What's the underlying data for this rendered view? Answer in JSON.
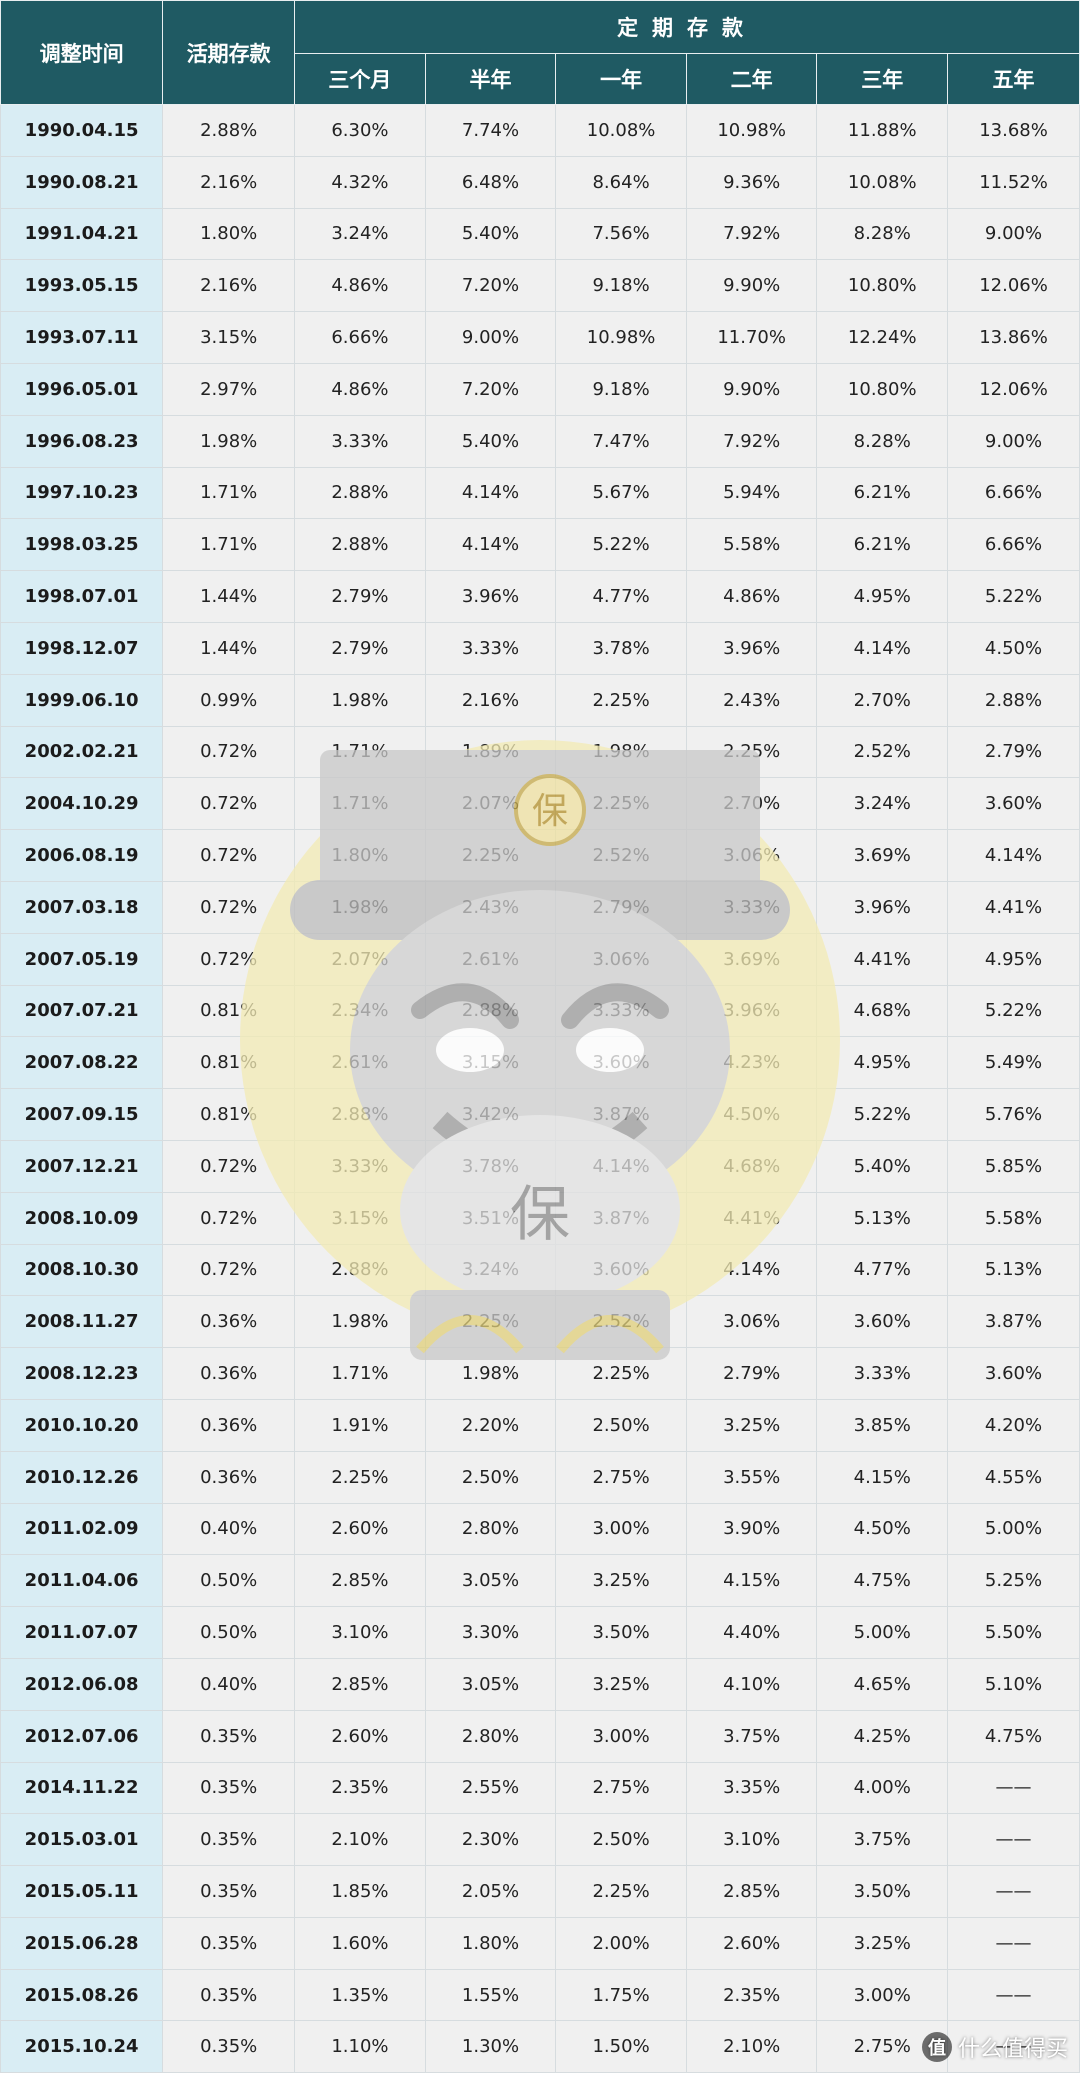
{
  "table": {
    "header": {
      "date_col": "调整时间",
      "demand_col": "活期存款",
      "fixed_group": "定期存款",
      "fixed_cols": [
        "三个月",
        "半年",
        "一年",
        "二年",
        "三年",
        "五年"
      ]
    },
    "rows": [
      [
        "1990.04.15",
        "2.88%",
        "6.30%",
        "7.74%",
        "10.08%",
        "10.98%",
        "11.88%",
        "13.68%"
      ],
      [
        "1990.08.21",
        "2.16%",
        "4.32%",
        "6.48%",
        "8.64%",
        "9.36%",
        "10.08%",
        "11.52%"
      ],
      [
        "1991.04.21",
        "1.80%",
        "3.24%",
        "5.40%",
        "7.56%",
        "7.92%",
        "8.28%",
        "9.00%"
      ],
      [
        "1993.05.15",
        "2.16%",
        "4.86%",
        "7.20%",
        "9.18%",
        "9.90%",
        "10.80%",
        "12.06%"
      ],
      [
        "1993.07.11",
        "3.15%",
        "6.66%",
        "9.00%",
        "10.98%",
        "11.70%",
        "12.24%",
        "13.86%"
      ],
      [
        "1996.05.01",
        "2.97%",
        "4.86%",
        "7.20%",
        "9.18%",
        "9.90%",
        "10.80%",
        "12.06%"
      ],
      [
        "1996.08.23",
        "1.98%",
        "3.33%",
        "5.40%",
        "7.47%",
        "7.92%",
        "8.28%",
        "9.00%"
      ],
      [
        "1997.10.23",
        "1.71%",
        "2.88%",
        "4.14%",
        "5.67%",
        "5.94%",
        "6.21%",
        "6.66%"
      ],
      [
        "1998.03.25",
        "1.71%",
        "2.88%",
        "4.14%",
        "5.22%",
        "5.58%",
        "6.21%",
        "6.66%"
      ],
      [
        "1998.07.01",
        "1.44%",
        "2.79%",
        "3.96%",
        "4.77%",
        "4.86%",
        "4.95%",
        "5.22%"
      ],
      [
        "1998.12.07",
        "1.44%",
        "2.79%",
        "3.33%",
        "3.78%",
        "3.96%",
        "4.14%",
        "4.50%"
      ],
      [
        "1999.06.10",
        "0.99%",
        "1.98%",
        "2.16%",
        "2.25%",
        "2.43%",
        "2.70%",
        "2.88%"
      ],
      [
        "2002.02.21",
        "0.72%",
        "1.71%",
        "1.89%",
        "1.98%",
        "2.25%",
        "2.52%",
        "2.79%"
      ],
      [
        "2004.10.29",
        "0.72%",
        "1.71%",
        "2.07%",
        "2.25%",
        "2.70%",
        "3.24%",
        "3.60%"
      ],
      [
        "2006.08.19",
        "0.72%",
        "1.80%",
        "2.25%",
        "2.52%",
        "3.06%",
        "3.69%",
        "4.14%"
      ],
      [
        "2007.03.18",
        "0.72%",
        "1.98%",
        "2.43%",
        "2.79%",
        "3.33%",
        "3.96%",
        "4.41%"
      ],
      [
        "2007.05.19",
        "0.72%",
        "2.07%",
        "2.61%",
        "3.06%",
        "3.69%",
        "4.41%",
        "4.95%"
      ],
      [
        "2007.07.21",
        "0.81%",
        "2.34%",
        "2.88%",
        "3.33%",
        "3.96%",
        "4.68%",
        "5.22%"
      ],
      [
        "2007.08.22",
        "0.81%",
        "2.61%",
        "3.15%",
        "3.60%",
        "4.23%",
        "4.95%",
        "5.49%"
      ],
      [
        "2007.09.15",
        "0.81%",
        "2.88%",
        "3.42%",
        "3.87%",
        "4.50%",
        "5.22%",
        "5.76%"
      ],
      [
        "2007.12.21",
        "0.72%",
        "3.33%",
        "3.78%",
        "4.14%",
        "4.68%",
        "5.40%",
        "5.85%"
      ],
      [
        "2008.10.09",
        "0.72%",
        "3.15%",
        "3.51%",
        "3.87%",
        "4.41%",
        "5.13%",
        "5.58%"
      ],
      [
        "2008.10.30",
        "0.72%",
        "2.88%",
        "3.24%",
        "3.60%",
        "4.14%",
        "4.77%",
        "5.13%"
      ],
      [
        "2008.11.27",
        "0.36%",
        "1.98%",
        "2.25%",
        "2.52%",
        "3.06%",
        "3.60%",
        "3.87%"
      ],
      [
        "2008.12.23",
        "0.36%",
        "1.71%",
        "1.98%",
        "2.25%",
        "2.79%",
        "3.33%",
        "3.60%"
      ],
      [
        "2010.10.20",
        "0.36%",
        "1.91%",
        "2.20%",
        "2.50%",
        "3.25%",
        "3.85%",
        "4.20%"
      ],
      [
        "2010.12.26",
        "0.36%",
        "2.25%",
        "2.50%",
        "2.75%",
        "3.55%",
        "4.15%",
        "4.55%"
      ],
      [
        "2011.02.09",
        "0.40%",
        "2.60%",
        "2.80%",
        "3.00%",
        "3.90%",
        "4.50%",
        "5.00%"
      ],
      [
        "2011.04.06",
        "0.50%",
        "2.85%",
        "3.05%",
        "3.25%",
        "4.15%",
        "4.75%",
        "5.25%"
      ],
      [
        "2011.07.07",
        "0.50%",
        "3.10%",
        "3.30%",
        "3.50%",
        "4.40%",
        "5.00%",
        "5.50%"
      ],
      [
        "2012.06.08",
        "0.40%",
        "2.85%",
        "3.05%",
        "3.25%",
        "4.10%",
        "4.65%",
        "5.10%"
      ],
      [
        "2012.07.06",
        "0.35%",
        "2.60%",
        "2.80%",
        "3.00%",
        "3.75%",
        "4.25%",
        "4.75%"
      ],
      [
        "2014.11.22",
        "0.35%",
        "2.35%",
        "2.55%",
        "2.75%",
        "3.35%",
        "4.00%",
        "——"
      ],
      [
        "2015.03.01",
        "0.35%",
        "2.10%",
        "2.30%",
        "2.50%",
        "3.10%",
        "3.75%",
        "——"
      ],
      [
        "2015.05.11",
        "0.35%",
        "1.85%",
        "2.05%",
        "2.25%",
        "2.85%",
        "3.50%",
        "——"
      ],
      [
        "2015.06.28",
        "0.35%",
        "1.60%",
        "1.80%",
        "2.00%",
        "2.60%",
        "3.25%",
        "——"
      ],
      [
        "2015.08.26",
        "0.35%",
        "1.35%",
        "1.55%",
        "1.75%",
        "2.35%",
        "3.00%",
        "——"
      ],
      [
        "2015.10.24",
        "0.35%",
        "1.10%",
        "1.30%",
        "1.50%",
        "2.10%",
        "2.75%",
        "——"
      ]
    ]
  },
  "watermark": {
    "badge_char": "保",
    "mascot_text": "保",
    "icon": "official-mascot-watermark"
  },
  "corner_mark": {
    "icon_char": "值",
    "text": "什么值得买"
  },
  "colors": {
    "header_bg": "#1f5a63",
    "date_bg": "#d9edf4",
    "cell_bg": "#f0f0f0"
  }
}
